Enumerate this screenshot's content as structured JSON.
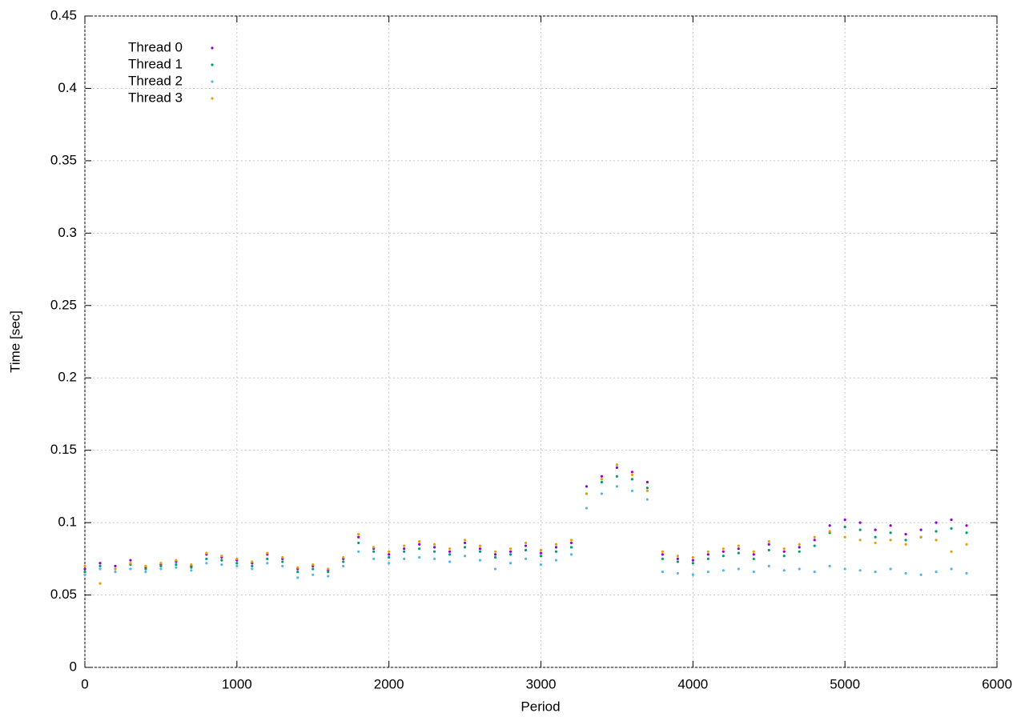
{
  "chart_data": {
    "type": "scatter",
    "x_label": "Period",
    "y_label": "Time [sec]",
    "xlim": [
      0,
      6000
    ],
    "xticks": [
      0,
      1000,
      2000,
      3000,
      4000,
      5000,
      6000
    ],
    "ylim": [
      0,
      0.45
    ],
    "yticks": [
      0,
      0.05,
      0.1,
      0.15,
      0.2,
      0.25,
      0.3,
      0.35,
      0.4,
      0.45
    ],
    "grid": true,
    "legend": "top-left",
    "x": [
      0,
      100,
      200,
      300,
      400,
      500,
      600,
      700,
      800,
      900,
      1000,
      1100,
      1200,
      1300,
      1400,
      1500,
      1600,
      1700,
      1800,
      1900,
      2000,
      2100,
      2200,
      2300,
      2400,
      2500,
      2600,
      2700,
      2800,
      2900,
      3000,
      3100,
      3200,
      3300,
      3400,
      3500,
      3600,
      3700,
      3800,
      3900,
      4000,
      4100,
      4200,
      4300,
      4400,
      4500,
      4600,
      4700,
      4800,
      4900,
      5000,
      5100,
      5200,
      5300,
      5400,
      5500,
      5600,
      5700,
      5800
    ],
    "series": [
      {
        "name": "Thread 0",
        "color": "#9400d3",
        "values": [
          0.068,
          0.072,
          0.07,
          0.074,
          0.069,
          0.071,
          0.073,
          0.07,
          0.078,
          0.076,
          0.074,
          0.072,
          0.078,
          0.075,
          0.068,
          0.07,
          0.067,
          0.075,
          0.09,
          0.082,
          0.078,
          0.082,
          0.085,
          0.083,
          0.08,
          0.086,
          0.082,
          0.078,
          0.08,
          0.084,
          0.079,
          0.083,
          0.086,
          0.125,
          0.132,
          0.138,
          0.135,
          0.128,
          0.078,
          0.075,
          0.074,
          0.078,
          0.08,
          0.082,
          0.078,
          0.085,
          0.08,
          0.083,
          0.088,
          0.098,
          0.102,
          0.1,
          0.095,
          0.098,
          0.092,
          0.095,
          0.1,
          0.102,
          0.098
        ]
      },
      {
        "name": "Thread 1",
        "color": "#009e73",
        "values": [
          0.066,
          0.07,
          0.068,
          0.071,
          0.068,
          0.07,
          0.071,
          0.069,
          0.075,
          0.074,
          0.072,
          0.07,
          0.075,
          0.073,
          0.066,
          0.068,
          0.066,
          0.073,
          0.086,
          0.08,
          0.076,
          0.08,
          0.082,
          0.08,
          0.078,
          0.083,
          0.08,
          0.076,
          0.078,
          0.081,
          0.077,
          0.08,
          0.083,
          0.12,
          0.128,
          0.132,
          0.13,
          0.124,
          0.075,
          0.073,
          0.072,
          0.075,
          0.077,
          0.079,
          0.075,
          0.081,
          0.077,
          0.08,
          0.084,
          0.093,
          0.097,
          0.095,
          0.09,
          0.093,
          0.088,
          0.09,
          0.094,
          0.096,
          0.093
        ]
      },
      {
        "name": "Thread 2",
        "color": "#56b4e9",
        "values": [
          0.064,
          0.068,
          0.066,
          0.068,
          0.066,
          0.068,
          0.069,
          0.067,
          0.072,
          0.071,
          0.07,
          0.068,
          0.072,
          0.07,
          0.062,
          0.064,
          0.063,
          0.07,
          0.08,
          0.075,
          0.072,
          0.075,
          0.076,
          0.075,
          0.073,
          0.077,
          0.074,
          0.068,
          0.072,
          0.075,
          0.071,
          0.074,
          0.078,
          0.11,
          0.12,
          0.125,
          0.122,
          0.116,
          0.066,
          0.065,
          0.064,
          0.066,
          0.067,
          0.068,
          0.066,
          0.07,
          0.067,
          0.068,
          0.066,
          0.07,
          0.068,
          0.067,
          0.066,
          0.068,
          0.065,
          0.064,
          0.066,
          0.068,
          0.065
        ]
      },
      {
        "name": "Thread 3",
        "color": "#e69f00",
        "values": [
          0.07,
          0.058,
          0.068,
          0.072,
          0.07,
          0.072,
          0.074,
          0.071,
          0.079,
          0.077,
          0.075,
          0.073,
          0.079,
          0.076,
          0.069,
          0.071,
          0.068,
          0.076,
          0.092,
          0.083,
          0.08,
          0.084,
          0.087,
          0.085,
          0.082,
          0.088,
          0.084,
          0.08,
          0.082,
          0.086,
          0.081,
          0.085,
          0.088,
          0.12,
          0.13,
          0.14,
          0.133,
          0.122,
          0.08,
          0.077,
          0.076,
          0.08,
          0.082,
          0.084,
          0.08,
          0.087,
          0.082,
          0.085,
          0.09,
          0.094,
          0.09,
          0.088,
          0.086,
          0.088,
          0.085,
          0.09,
          0.088,
          0.08,
          0.085
        ]
      }
    ]
  }
}
